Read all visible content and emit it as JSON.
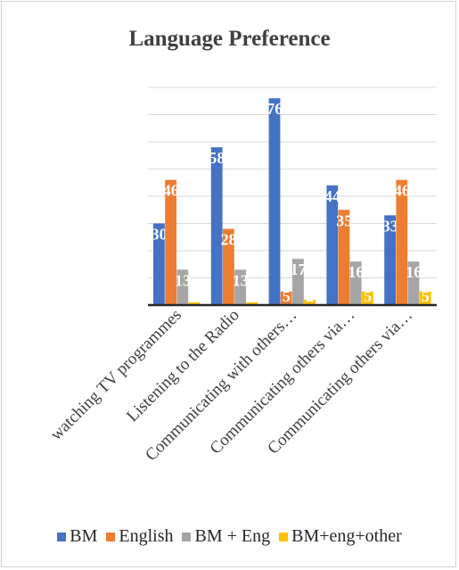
{
  "chart_data": {
    "type": "bar",
    "title": "Language Preference",
    "categories": [
      "watching TV programmes",
      "Listening to the Radio",
      "Communicating with others…",
      "Communicating others via…",
      "Communicating others via…"
    ],
    "series": [
      {
        "name": "BM",
        "color": "#4472C4",
        "values": [
          30,
          58,
          76,
          44,
          33
        ]
      },
      {
        "name": "English",
        "color": "#ED7D31",
        "values": [
          46,
          28,
          5,
          35,
          46
        ]
      },
      {
        "name": "BM + Eng",
        "color": "#A5A5A5",
        "values": [
          13,
          13,
          17,
          16,
          16
        ]
      },
      {
        "name": "BM+eng+other",
        "color": "#FFC000",
        "values": [
          1,
          1,
          2,
          5,
          5
        ]
      }
    ],
    "ylim": [
      0,
      80
    ],
    "grid": true,
    "legend": "bottom",
    "data_labels": [
      [
        "30",
        "46",
        "13",
        "1"
      ],
      [
        "58",
        "28",
        "13",
        "1"
      ],
      [
        "76",
        "5",
        "17",
        "2"
      ],
      [
        "44",
        "35",
        "16",
        "5"
      ],
      [
        "33",
        "46",
        "16",
        "5"
      ]
    ]
  }
}
